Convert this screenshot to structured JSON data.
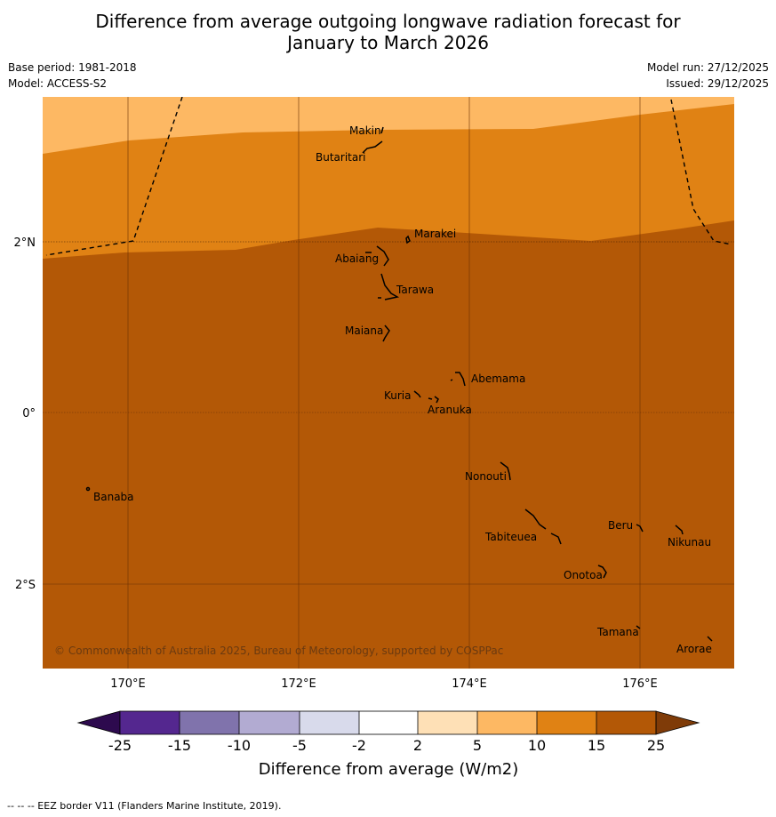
{
  "title_line1": "Difference from average outgoing longwave radiation forecast for",
  "title_line2": "January to March 2026",
  "base_period": "Base period: 1981-2018",
  "model": "Model: ACCESS-S2",
  "model_run": "Model run: 27/12/2025",
  "issued": "Issued: 29/12/2025",
  "copyright": "© Commonwealth of Australia 2025, Bureau of Meteorology, supported by COSPPac",
  "footer": "--  --  -- EEZ border V11 (Flanders Marine Institute, 2019).",
  "axes": {
    "lon_labels": [
      "170°E",
      "172°E",
      "174°E",
      "176°E"
    ],
    "lat_labels": [
      "2°N",
      "0°",
      "2°S"
    ]
  },
  "islands": {
    "makin": "Makin",
    "butaritari": "Butaritari",
    "marakei": "Marakei",
    "abaiang": "Abaiang",
    "tarawa": "Tarawa",
    "maiana": "Maiana",
    "abemama": "Abemama",
    "kuria": "Kuria",
    "aranuka": "Aranuka",
    "nonouti": "Nonouti",
    "banaba": "Banaba",
    "beru": "Beru",
    "nikunau": "Nikunau",
    "tabiteuea": "Tabiteuea",
    "onotoa": "Onotoa",
    "tamana": "Tamana",
    "arorae": "Arorae"
  },
  "colorbar": {
    "title": "Difference from average (W/m2)",
    "ticks": [
      "-25",
      "-15",
      "-10",
      "-5",
      "-2",
      "2",
      "5",
      "10",
      "15",
      "25"
    ],
    "colors": {
      "lt_neg25": "#2d0a4e",
      "neg25_neg15": "#54278f",
      "neg15_neg10": "#8073ac",
      "neg10_neg5": "#b2abd2",
      "neg5_neg2": "#d8daeb",
      "neg2_2": "#ffffff",
      "2_5": "#fee0b6",
      "5_10": "#fdb863",
      "10_15": "#e08214",
      "15_25": "#b35806",
      "gt_25": "#7f3b08"
    }
  }
}
